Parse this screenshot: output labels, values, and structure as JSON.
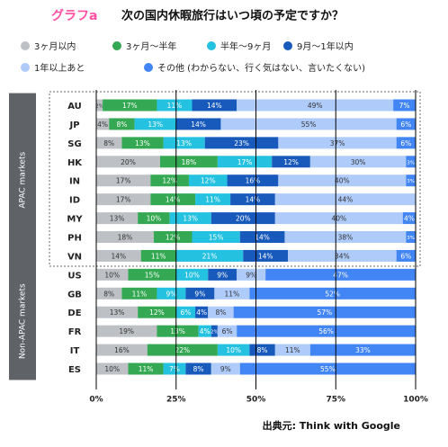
{
  "logo": "グラフa",
  "source": "出典元: Think with Google",
  "chart_data": {
    "type": "bar",
    "orientation": "horizontal",
    "stacked": true,
    "title": "次の国内休暇旅行はいつ頃の予定ですか？",
    "groups": [
      {
        "name": "APAC markets",
        "categories": [
          "AU",
          "JP",
          "SG",
          "HK",
          "IN",
          "ID",
          "MY",
          "PH",
          "VN"
        ]
      },
      {
        "name": "Non-APAC markets",
        "categories": [
          "US",
          "GB",
          "DE",
          "FR",
          "IT",
          "ES"
        ]
      }
    ],
    "series": [
      {
        "name": "3ヶ月以内",
        "color": "#bdc1c6",
        "values": [
          2,
          4,
          8,
          20,
          17,
          17,
          13,
          18,
          14,
          10,
          8,
          13,
          19,
          16,
          10
        ],
        "value_labels": [
          "2%",
          "4%",
          "8%",
          "20%",
          "17%",
          "17%",
          "13%",
          "18%",
          "14%",
          "10%",
          "8%",
          "13%",
          "19%",
          "16%",
          "10%"
        ]
      },
      {
        "name": "3ヶ月～半年",
        "color": "#34a853",
        "values": [
          17,
          8,
          13,
          18,
          12,
          14,
          10,
          12,
          11,
          15,
          11,
          12,
          13,
          22,
          11
        ],
        "value_labels": [
          "17%",
          "8%",
          "13%",
          "18%",
          "12%",
          "14%",
          "10%",
          "12%",
          "11%",
          "15%",
          "11%",
          "12%",
          "13%",
          "22%",
          "11%"
        ]
      },
      {
        "name": "半年～9ヶ月",
        "color": "#24c1e0",
        "values": [
          11,
          13,
          13,
          17,
          12,
          11,
          13,
          15,
          21,
          10,
          9,
          6,
          4,
          10,
          7
        ],
        "value_labels": [
          "11%",
          "13%",
          "13%",
          "17%",
          "12%",
          "11%",
          "13%",
          "15%",
          "21%",
          "10%",
          "9%",
          "6%",
          "4%",
          "10%",
          "7%"
        ]
      },
      {
        "name": "9月～1年以内",
        "color": "#185abc",
        "values": [
          14,
          14,
          23,
          12,
          16,
          14,
          20,
          14,
          14,
          9,
          9,
          4,
          2,
          8,
          8
        ],
        "value_labels": [
          "14%",
          "14%",
          "23%",
          "12%",
          "16%",
          "14%",
          "20%",
          "14%",
          "14%",
          "9%",
          "9%",
          "4%",
          "2%",
          "8%",
          "8%"
        ]
      },
      {
        "name": "1年以上あと",
        "color": "#aecbfa",
        "values": [
          49,
          55,
          37,
          30,
          40,
          44,
          40,
          38,
          34,
          9,
          11,
          8,
          6,
          11,
          9
        ],
        "value_labels": [
          "49%",
          "55%",
          "37%",
          "30%",
          "40%",
          "44%",
          "40%",
          "38%",
          "34%",
          "9%",
          "11%",
          "8%",
          "6%",
          "11%",
          "9%"
        ]
      },
      {
        "name": "その他 (わからない、行く気はない、言いたくない)",
        "color": "#4285f4",
        "values": [
          7,
          6,
          6,
          3,
          3,
          0,
          4,
          3,
          6,
          47,
          52,
          57,
          56,
          33,
          55
        ],
        "value_labels": [
          "7%",
          "6%",
          "6%",
          "3%",
          "3%",
          null,
          "4%",
          "3%",
          "6%",
          "47%",
          "52%",
          "57%",
          "56%",
          "33%",
          "55%"
        ]
      }
    ],
    "xlim": [
      0,
      100
    ],
    "xticks": [
      {
        "value": 0,
        "label": "0%"
      },
      {
        "value": 25,
        "label": "25%"
      },
      {
        "value": 50,
        "label": "50%"
      },
      {
        "value": 75,
        "label": "75%"
      },
      {
        "value": 100,
        "label": "100%"
      }
    ],
    "grid": true
  }
}
